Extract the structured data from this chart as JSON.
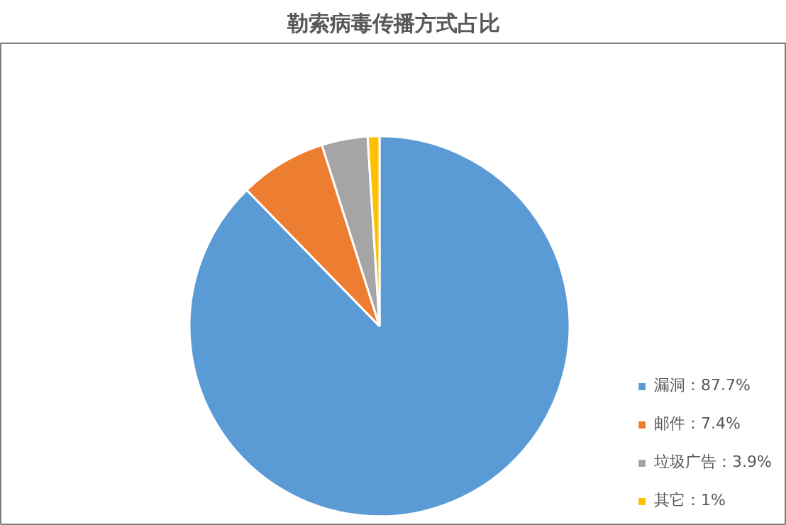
{
  "chart_data": {
    "type": "pie",
    "title": "勒索病毒传播方式占比",
    "categories": [
      "漏洞：87.7%",
      "邮件：7.4%",
      "垃圾广告：3.9%",
      "其它：1%"
    ],
    "values": [
      87.7,
      7.4,
      3.9,
      1
    ],
    "colors": [
      "#5b9bd5",
      "#ed7d31",
      "#a5a5a5",
      "#ffc000"
    ],
    "legend": "bottom right"
  }
}
